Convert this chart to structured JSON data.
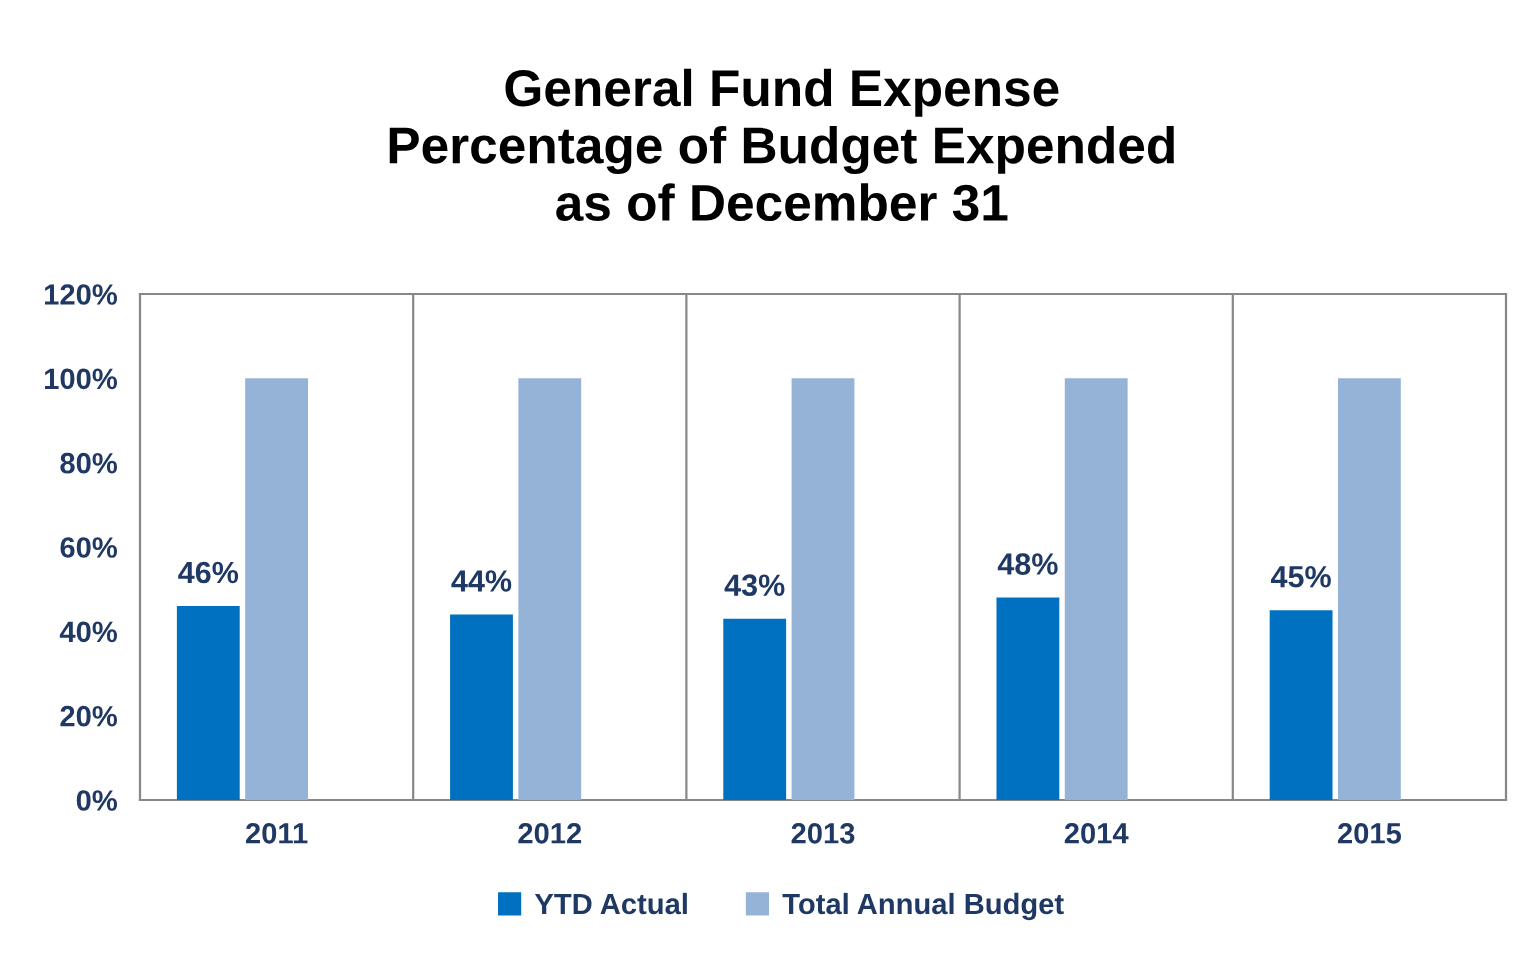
{
  "chart_data": {
    "type": "bar",
    "title": "General Fund Expense\nPercentage of Budget Expended\nas of December 31",
    "categories": [
      "2011",
      "2012",
      "2013",
      "2014",
      "2015"
    ],
    "series": [
      {
        "name": "YTD Actual",
        "color": "#0070c0",
        "values": [
          46,
          44,
          43,
          48,
          45
        ],
        "value_labels": [
          "46%",
          "44%",
          "43%",
          "48%",
          "45%"
        ]
      },
      {
        "name": "Total Annual Budget",
        "color": "#95b3d7",
        "values": [
          100,
          100,
          100,
          100,
          100
        ]
      }
    ],
    "ylim": [
      0,
      120
    ],
    "yticks": [
      {
        "value": 0,
        "label": "0%"
      },
      {
        "value": 20,
        "label": "20%"
      },
      {
        "value": 40,
        "label": "40%"
      },
      {
        "value": 60,
        "label": "60%"
      },
      {
        "value": 80,
        "label": "80%"
      },
      {
        "value": 100,
        "label": "100%"
      },
      {
        "value": 120,
        "label": "120%"
      }
    ],
    "grid": "x",
    "legend": "bottom"
  }
}
